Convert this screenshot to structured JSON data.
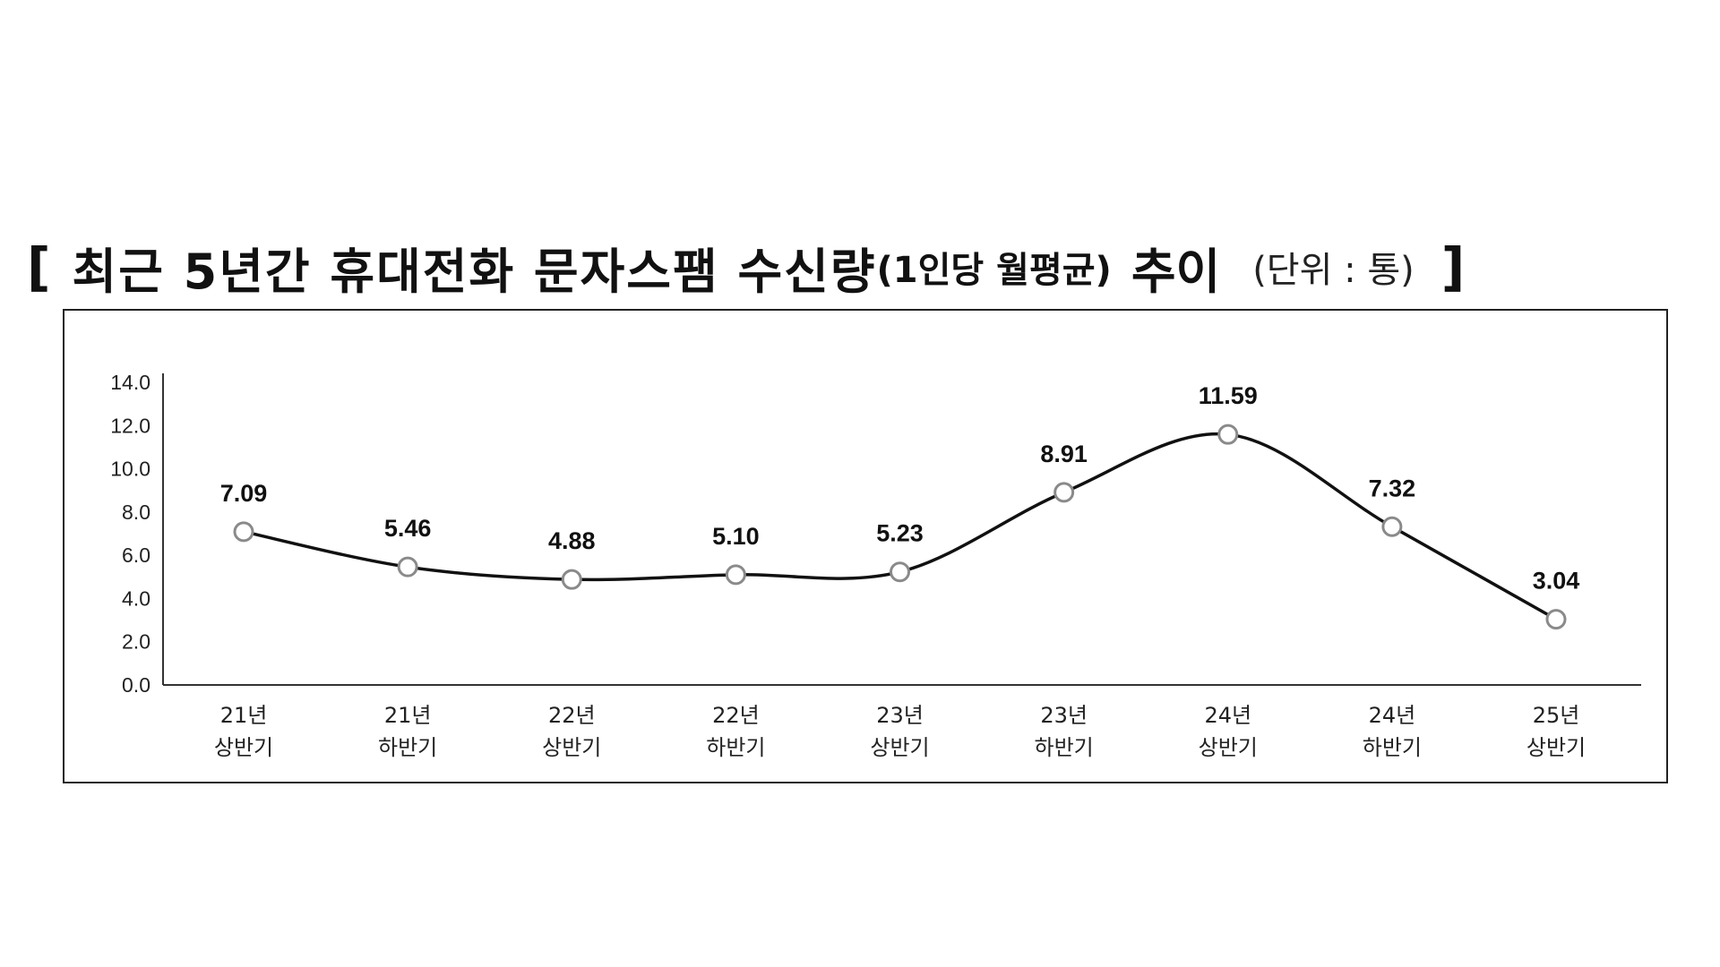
{
  "title": {
    "open_bracket": "[",
    "main": "최근 5년간 휴대전화 문자스팸 수신량",
    "sub": "(1인당 월평균)",
    "end": "추이",
    "unit": "(단위 : 통)",
    "close_bracket": "]"
  },
  "chart_data": {
    "type": "line",
    "title": "최근 5년간 휴대전화 문자스팸 수신량(1인당 월평균) 추이",
    "unit": "(단위 : 통)",
    "categories": [
      [
        "21년",
        "상반기"
      ],
      [
        "21년",
        "하반기"
      ],
      [
        "22년",
        "상반기"
      ],
      [
        "22년",
        "하반기"
      ],
      [
        "23년",
        "상반기"
      ],
      [
        "23년",
        "하반기"
      ],
      [
        "24년",
        "상반기"
      ],
      [
        "24년",
        "하반기"
      ],
      [
        "25년",
        "상반기"
      ]
    ],
    "values": [
      7.09,
      5.46,
      4.88,
      5.1,
      5.23,
      8.91,
      11.59,
      7.32,
      3.04
    ],
    "data_labels": [
      "7.09",
      "5.46",
      "4.88",
      "5.10",
      "5.23",
      "8.91",
      "11.59",
      "7.32",
      "3.04"
    ],
    "yticks": [
      "0.0",
      "2.0",
      "4.0",
      "6.0",
      "8.0",
      "10.0",
      "12.0",
      "14.0"
    ],
    "ylim": [
      0,
      14
    ],
    "grid": false,
    "legend": "none",
    "line_color": "#111111",
    "marker_fill": "#ffffff",
    "marker_stroke": "#8a8a8a"
  }
}
